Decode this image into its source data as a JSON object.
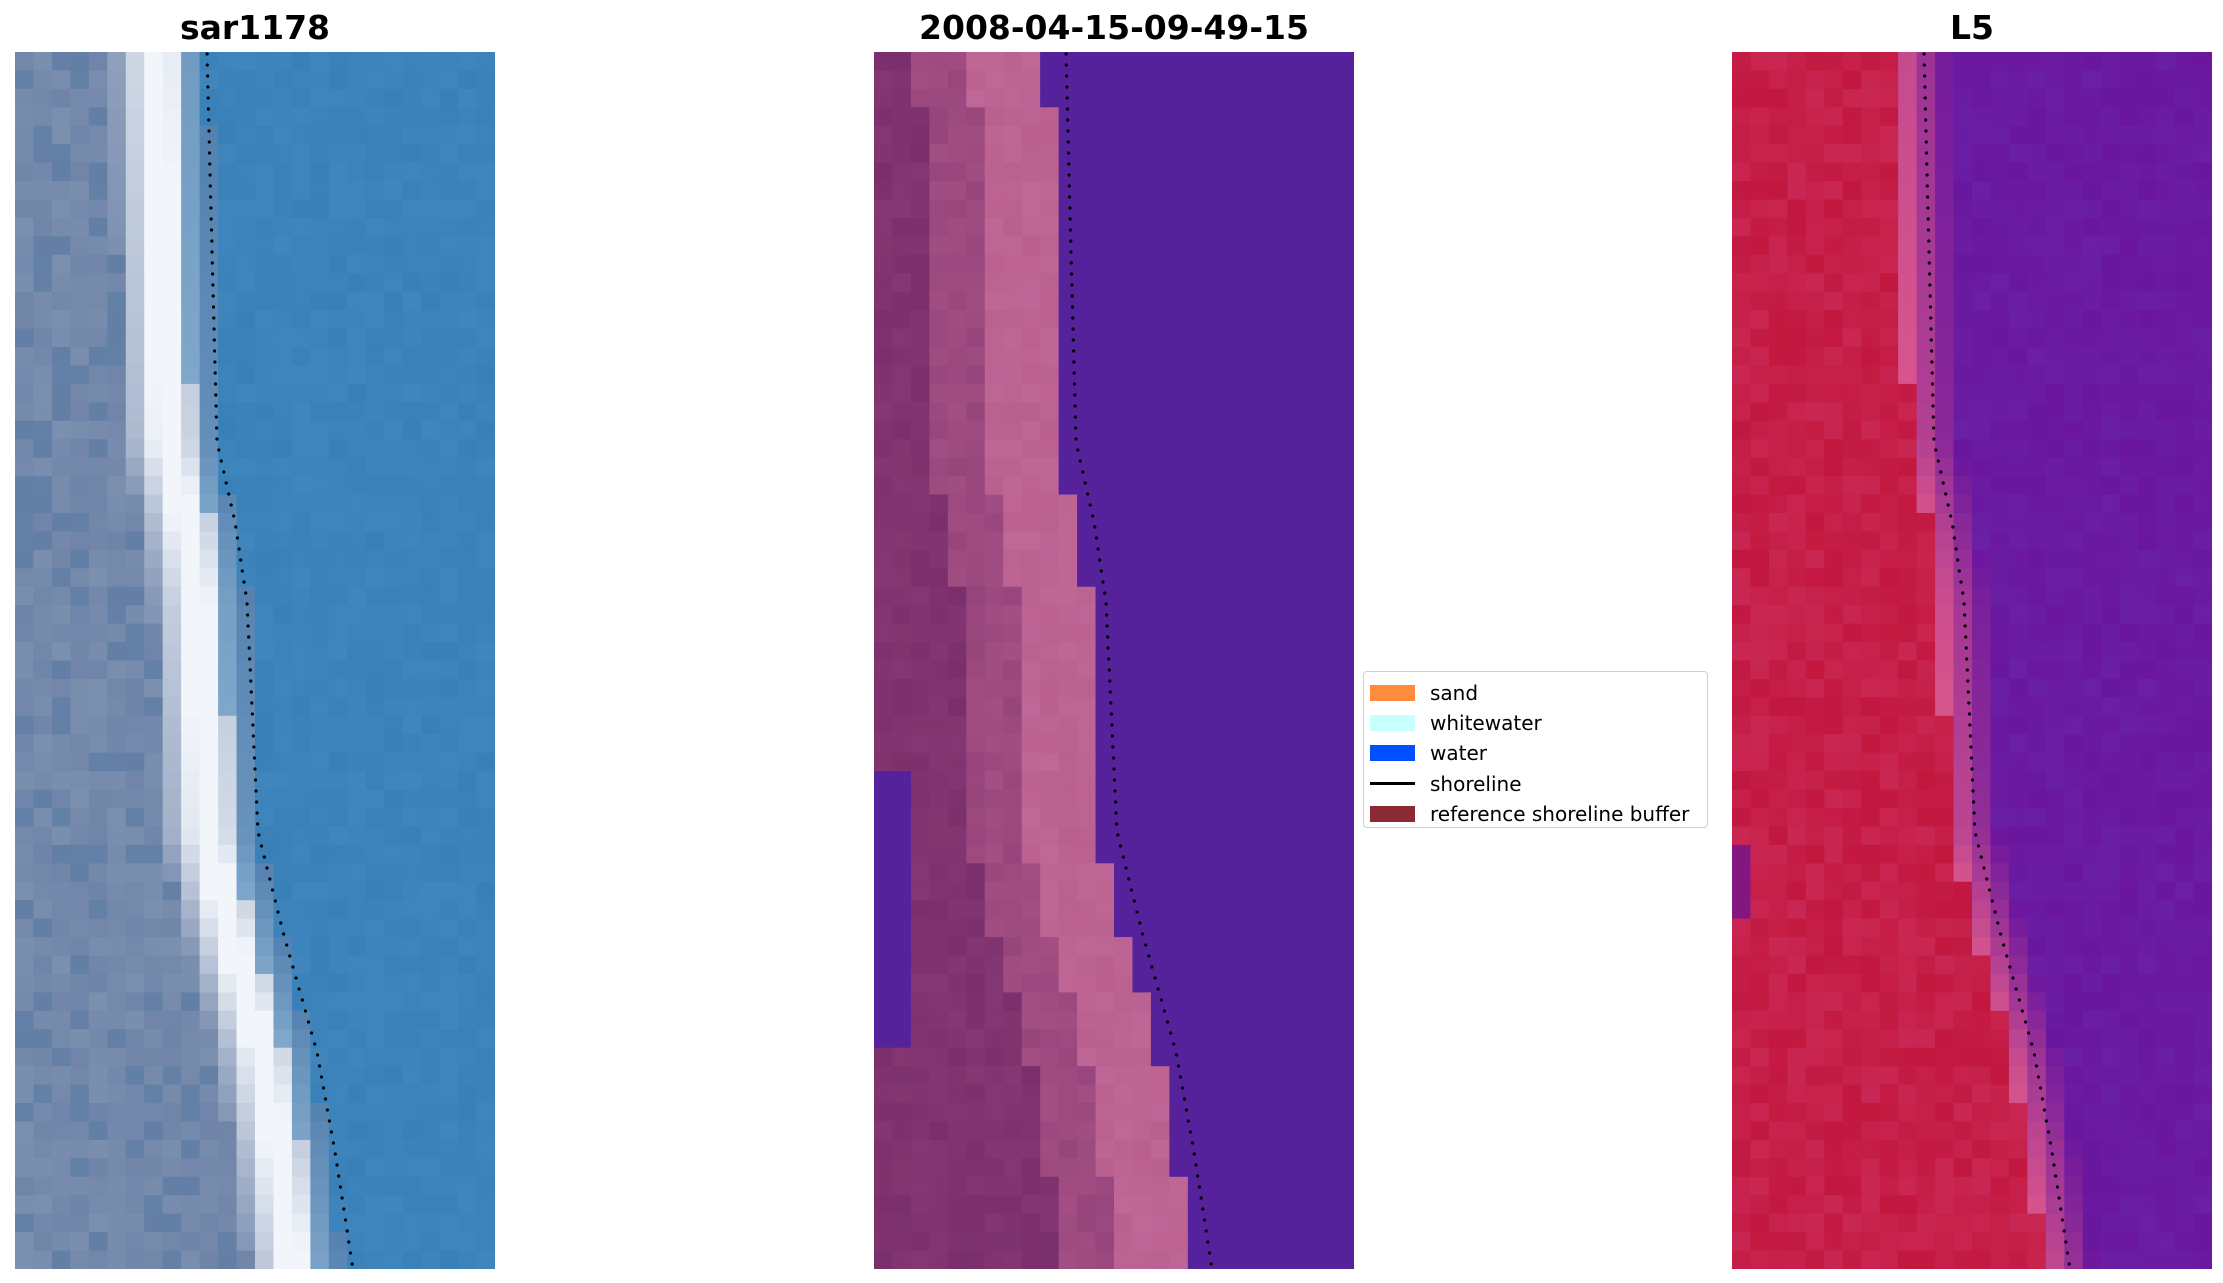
{
  "panels": [
    {
      "title": "sar1178",
      "kind": "rgb"
    },
    {
      "title": "2008-04-15-09-49-15",
      "kind": "classified"
    },
    {
      "title": "L5",
      "kind": "mndwi"
    }
  ],
  "legend": {
    "items": [
      {
        "label": "sand",
        "color": "#ff8c3c",
        "type": "patch"
      },
      {
        "label": "whitewater",
        "color": "#c8ffff",
        "type": "patch"
      },
      {
        "label": "water",
        "color": "#0050ff",
        "type": "patch"
      },
      {
        "label": "shoreline",
        "color": "#000000",
        "type": "line"
      },
      {
        "label": "reference shoreline buffer",
        "color": "#8b2a32",
        "type": "patch"
      }
    ]
  },
  "colors": {
    "rgb_land": "#6f84a8",
    "rgb_water": "#3a80b8",
    "rgb_whitewater": "#f2f6fb",
    "class_land": "#7a2f6c",
    "class_beach": "#b9608f",
    "class_water": "#55229c",
    "index_land": "#c2173f",
    "index_water": "#6a169e"
  }
}
